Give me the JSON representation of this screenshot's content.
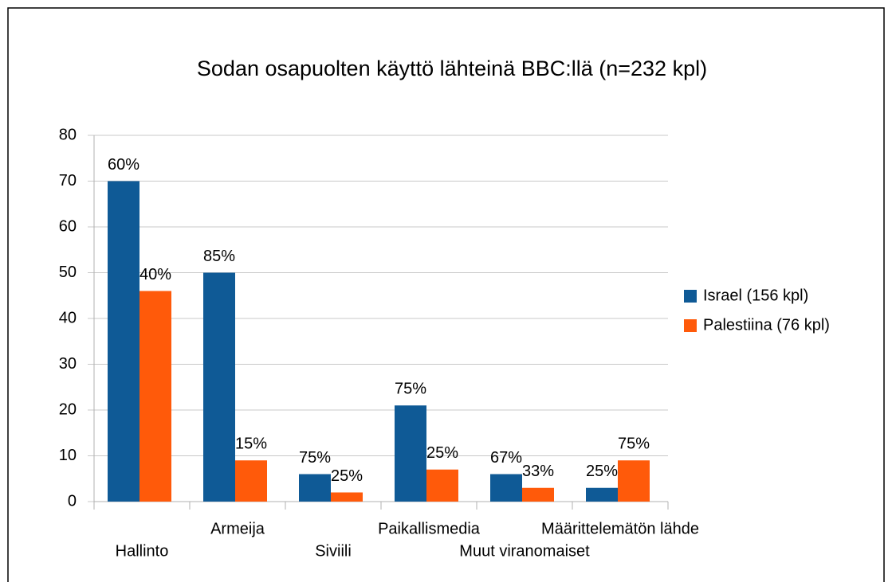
{
  "chart_data": {
    "type": "bar",
    "title": "Sodan osapuolten käyttö lähteinä BBC:llä (n=232 kpl)",
    "categories": [
      "Hallinto",
      "Armeija",
      "Siviili",
      "Paikallismedia",
      "Muut viranomaiset",
      "Määrittelemätön lähde"
    ],
    "series": [
      {
        "name": "Israel (156 kpl)",
        "color": "#0f5a96",
        "values": [
          70,
          50,
          6,
          21,
          6,
          3
        ],
        "share_labels": [
          "60%",
          "85%",
          "75%",
          "75%",
          "67%",
          "25%"
        ]
      },
      {
        "name": "Palestiina (76 kpl)",
        "color": "#ff5a0a",
        "values": [
          46,
          9,
          2,
          7,
          3,
          9
        ],
        "share_labels": [
          "40%",
          "15%",
          "25%",
          "25%",
          "33%",
          "75%"
        ]
      }
    ],
    "ylim": [
      0,
      80
    ],
    "yticks": [
      0,
      10,
      20,
      30,
      40,
      50,
      60,
      70,
      80
    ],
    "grid": true,
    "legend": "right"
  }
}
